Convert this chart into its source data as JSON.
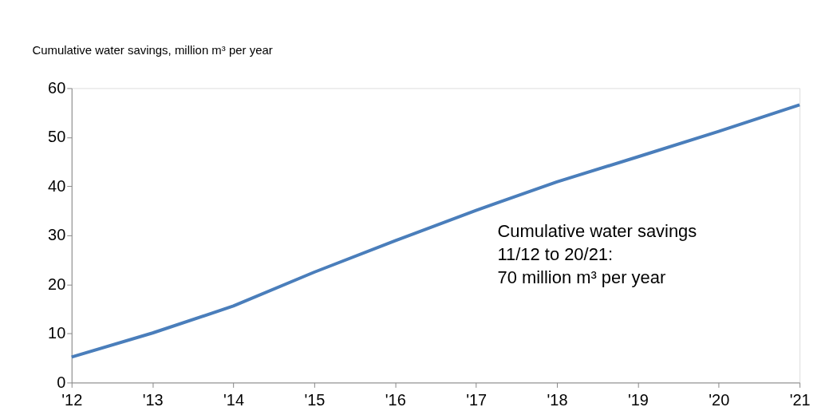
{
  "chart_data": {
    "type": "line",
    "ylabel": "Cumulative water savings, million m³ per year",
    "categories": [
      "'12",
      "'13",
      "'14",
      "'15",
      "'16",
      "'17",
      "'18",
      "'19",
      "'20",
      "'21"
    ],
    "series": [
      {
        "color": "#4a7ebb",
        "values": [
          5.2,
          10.1,
          15.6,
          22.5,
          28.9,
          35.1,
          40.9,
          46.0,
          51.2,
          56.6
        ]
      }
    ],
    "ylim": [
      0,
      60
    ],
    "yticks": [
      0,
      10,
      20,
      30,
      40,
      50,
      60
    ],
    "grid": false,
    "marker": "none",
    "line_style": "solid",
    "annotations": [
      "Cumulative water savings\n11/12 to 20/21:\n70 million m³ per year"
    ]
  }
}
